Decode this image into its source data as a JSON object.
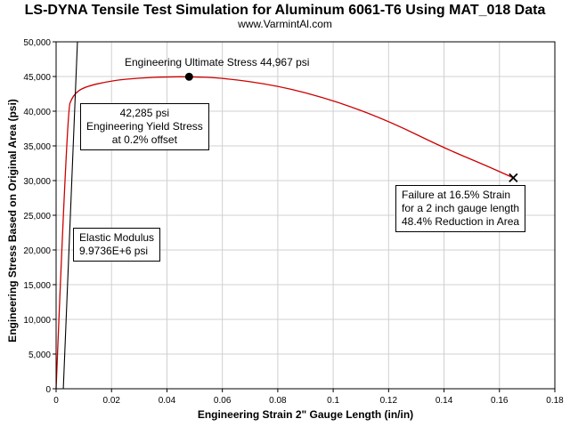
{
  "chart_data": {
    "type": "line",
    "title": "LS-DYNA Tensile Test Simulation for Aluminum 6061-T6 Using MAT_018 Data",
    "subtitle": "www.VarmintAl.com",
    "xlabel": "Engineering Strain 2\" Gauge Length (in/in)",
    "ylabel": "Engineering Stress Based on Original Area (psi)",
    "xlim": [
      0,
      0.18
    ],
    "ylim": [
      0,
      50000
    ],
    "xticks": [
      "0",
      "0.02",
      "0.04",
      "0.06",
      "0.08",
      "0.1",
      "0.12",
      "0.14",
      "0.16",
      "0.18"
    ],
    "yticks": [
      "0",
      "5,000",
      "10,000",
      "15,000",
      "20,000",
      "25,000",
      "30,000",
      "35,000",
      "40,000",
      "45,000",
      "50,000"
    ],
    "grid": true,
    "legend": "none",
    "series": [
      {
        "color": "#cc0000",
        "x": [
          0,
          0.004,
          0.006,
          0.01,
          0.02,
          0.03,
          0.04,
          0.048,
          0.06,
          0.08,
          0.1,
          0.12,
          0.14,
          0.155,
          0.165
        ],
        "y": [
          0,
          40000,
          42285,
          43500,
          44400,
          44800,
          44950,
          44967,
          44800,
          43700,
          41600,
          38600,
          34700,
          32200,
          30400
        ]
      },
      {
        "color": "#000000",
        "x": [
          0.0026,
          0.0077
        ],
        "y": [
          0,
          50000
        ]
      }
    ],
    "markers": [
      {
        "label": "ultimate",
        "shape": "circle",
        "x": 0.048,
        "y": 44967
      },
      {
        "label": "failure",
        "shape": "x",
        "x": 0.165,
        "y": 30400
      }
    ],
    "annotations": {
      "ultimate": "Engineering Ultimate Stress 44,967 psi",
      "yield_value": "42,285 psi",
      "yield_label": "Engineering Yield Stress",
      "yield_offset": "at 0.2% offset",
      "modulus_label": "Elastic Modulus",
      "modulus_value": "9.9736E+6 psi",
      "failure_line1": "Failure at 16.5% Strain",
      "failure_line2": "for a 2 inch gauge length",
      "failure_line3": "48.4% Reduction in Area"
    }
  }
}
